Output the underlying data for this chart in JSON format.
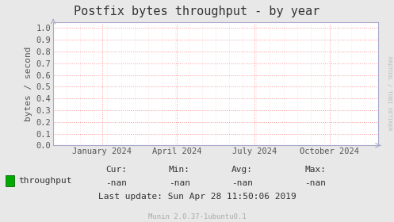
{
  "title": "Postfix bytes throughput - by year",
  "ylabel": "bytes / second",
  "yticks": [
    0.0,
    0.1,
    0.2,
    0.3,
    0.4,
    0.5,
    0.6,
    0.7,
    0.8,
    0.9,
    1.0
  ],
  "ylim": [
    0.0,
    1.05
  ],
  "xtick_labels": [
    "January 2024",
    "April 2024",
    "July 2024",
    "October 2024"
  ],
  "xtick_positions": [
    0.15,
    0.38,
    0.62,
    0.85
  ],
  "bg_color": "#e8e8e8",
  "plot_bg_color": "#ffffff",
  "grid_color": "#ff9999",
  "grid_minor_color": "#ffcccc",
  "border_color": "#aaaacc",
  "legend_label": "throughput",
  "legend_color": "#00aa00",
  "cur_val": "-nan",
  "min_val": "-nan",
  "avg_val": "-nan",
  "max_val": "-nan",
  "last_update": "Last update: Sun Apr 28 11:50:06 2019",
  "munin_version": "Munin 2.0.37-1ubuntu0.1",
  "watermark": "RRDTOOL / TOBI OETIKER",
  "title_fontsize": 11,
  "ylabel_fontsize": 8,
  "tick_fontsize": 7.5,
  "legend_fontsize": 8,
  "stats_fontsize": 8,
  "small_fontsize": 6.5,
  "watermark_fontsize": 5
}
